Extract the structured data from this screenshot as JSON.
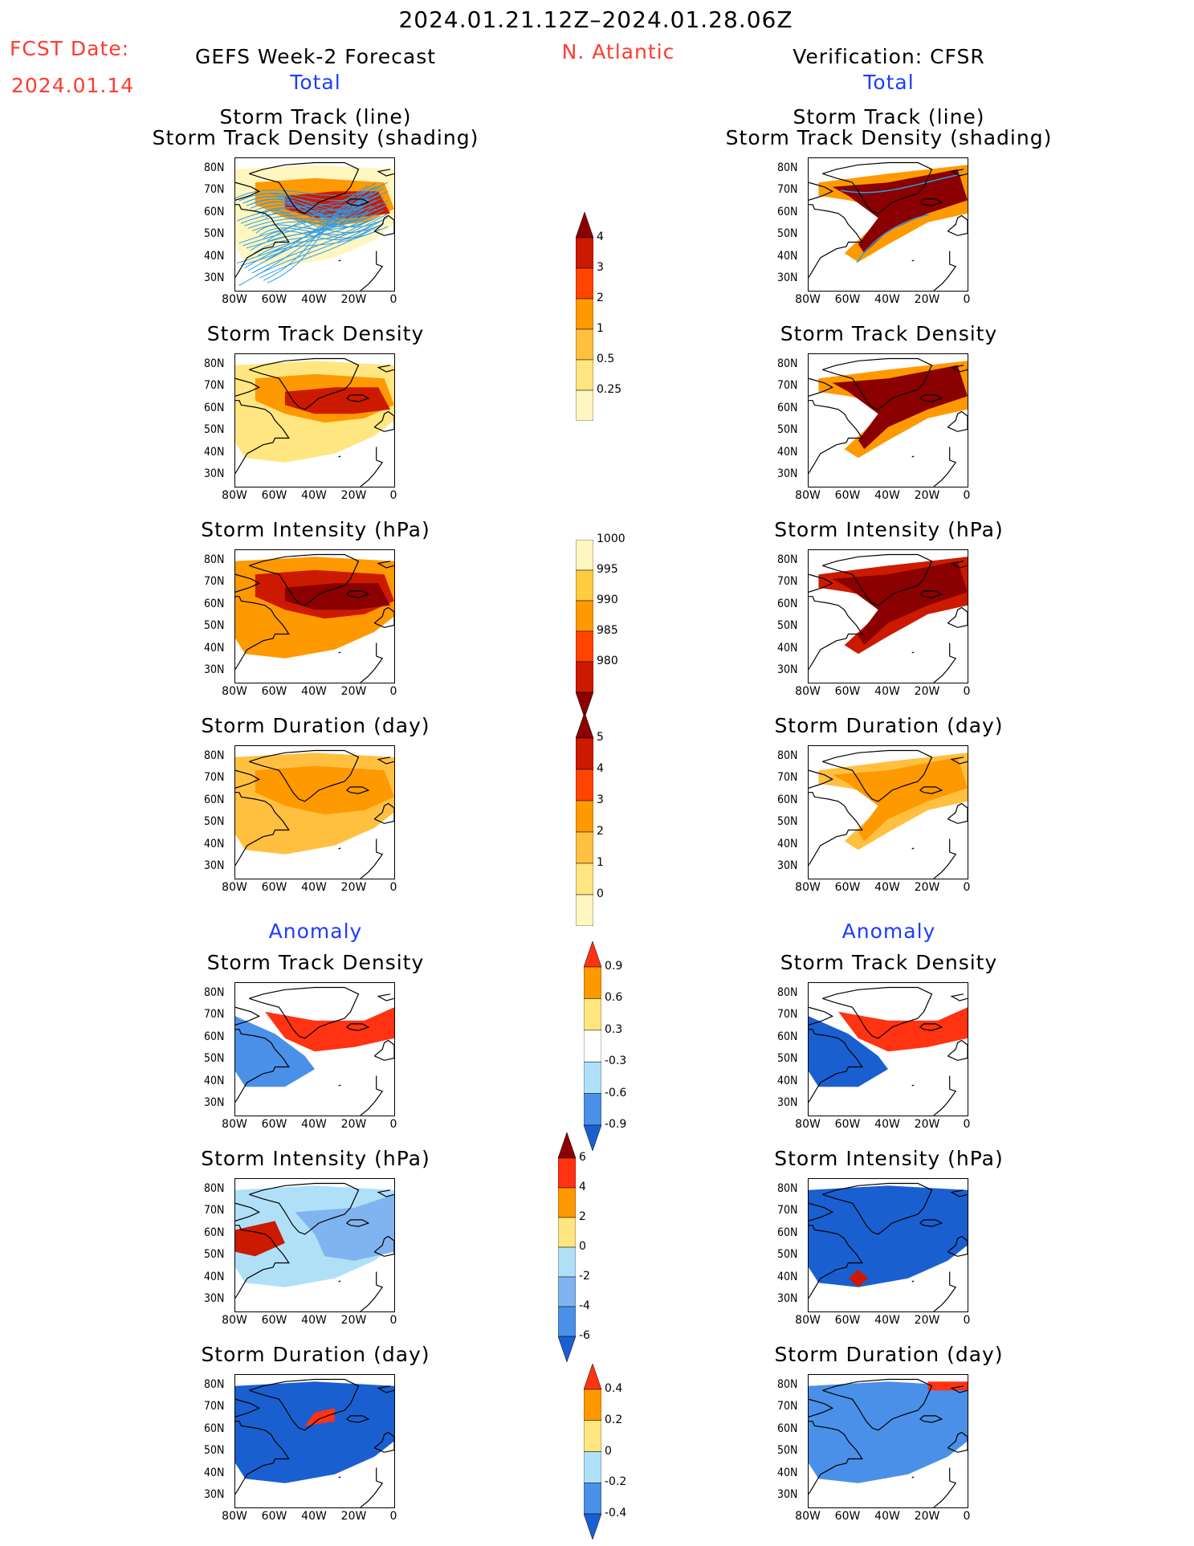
{
  "header": {
    "date_range": "2024.01.21.12Z–2024.01.28.06Z",
    "fcst_label": "FCST Date:",
    "fcst_date": "2024.01.14",
    "left_title": "GEFS Week-2 Forecast",
    "region": "N. Atlantic",
    "right_title": "Verification: CFSR",
    "total_left": "Total",
    "total_right": "Total",
    "anomaly_left": "Anomaly",
    "anomaly_right": "Anomaly"
  },
  "panel_titles": {
    "track_line": "Storm Track (line)",
    "track_shading": "Storm Track Density (shading)",
    "density": "Storm Track Density",
    "intensity": "Storm Intensity (hPa)",
    "duration": "Storm Duration (day)"
  },
  "axes": {
    "lat_labels": [
      "80N",
      "70N",
      "60N",
      "50N",
      "40N",
      "30N"
    ],
    "lon_labels": [
      "80W",
      "60W",
      "40W",
      "20W",
      "0"
    ]
  },
  "colorbars": {
    "density": {
      "labels": [
        "4",
        "3",
        "2",
        "1",
        "0.5",
        "0.25"
      ],
      "colors": [
        "#8b0000",
        "#cc1a00",
        "#ff4400",
        "#ff9900",
        "#ffc040",
        "#ffe680",
        "#fff6c0"
      ]
    },
    "intensity": {
      "labels": [
        "1000",
        "995",
        "990",
        "985",
        "980"
      ],
      "colors": [
        "#fff6c0",
        "#ffcc40",
        "#ff9900",
        "#ff4400",
        "#cc1a00",
        "#8b0000"
      ]
    },
    "duration": {
      "labels": [
        "5",
        "4",
        "3",
        "2",
        "1",
        "0"
      ],
      "colors": [
        "#8b0000",
        "#cc1a00",
        "#ff4400",
        "#ff9900",
        "#ffc040",
        "#ffe680",
        "#fff6c0"
      ]
    },
    "anom_density": {
      "labels": [
        "0.9",
        "0.6",
        "0.3",
        "-0.3",
        "-0.6",
        "-0.9"
      ],
      "colors": [
        "#ff3311",
        "#ff9900",
        "#ffe680",
        "#ffffff",
        "#b0e0f8",
        "#4a90e8",
        "#1a5fd0"
      ]
    },
    "anom_intensity": {
      "labels": [
        "6",
        "4",
        "2",
        "0",
        "-2",
        "-4",
        "-6"
      ],
      "colors": [
        "#8b0000",
        "#ff3311",
        "#ff9900",
        "#ffe680",
        "#b0e0f8",
        "#80b4f0",
        "#4a90e8",
        "#1a5fd0"
      ]
    },
    "anom_duration": {
      "labels": [
        "0.4",
        "0.2",
        "0",
        "-0.2",
        "-0.4"
      ],
      "colors": [
        "#ff3311",
        "#ff9900",
        "#ffe680",
        "#b0e0f8",
        "#4a90e8",
        "#1a5fd0"
      ]
    }
  }
}
